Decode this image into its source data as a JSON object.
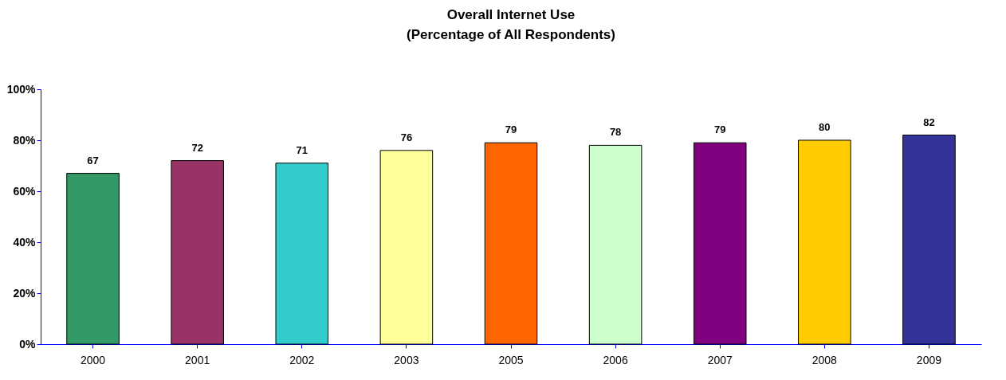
{
  "chart_data": {
    "type": "bar",
    "title": "Overall Internet Use",
    "subtitle": "(Percentage of All Respondents)",
    "categories": [
      "2000",
      "2001",
      "2002",
      "2003",
      "2005",
      "2006",
      "2007",
      "2008",
      "2009"
    ],
    "values": [
      67,
      72,
      71,
      76,
      79,
      78,
      79,
      80,
      82
    ],
    "colors": [
      "#339966",
      "#993366",
      "#33cccc",
      "#ffff99",
      "#ff6600",
      "#ccffcc",
      "#800080",
      "#ffcc00",
      "#333399"
    ],
    "ylim": [
      0,
      100
    ],
    "yticks": [
      {
        "value": 0,
        "label": "0%"
      },
      {
        "value": 20,
        "label": "20%"
      },
      {
        "value": 40,
        "label": "40%"
      },
      {
        "value": 60,
        "label": "60%"
      },
      {
        "value": 80,
        "label": "80%"
      },
      {
        "value": 100,
        "label": "100%"
      }
    ],
    "data_labels": true,
    "grid": false,
    "legend": false
  }
}
